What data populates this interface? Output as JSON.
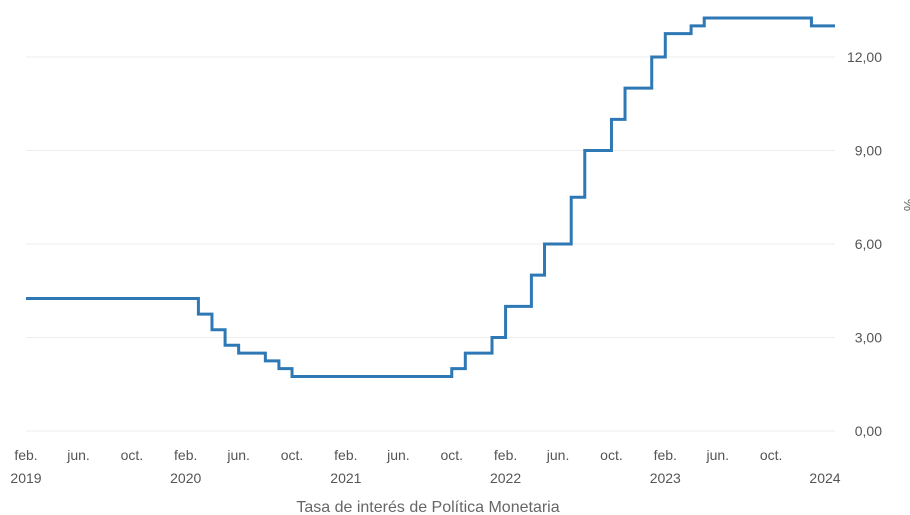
{
  "chart_data": {
    "type": "line",
    "step": true,
    "title": "Tasa de interés de Política Monetaria",
    "ylabel": "%",
    "ylim": [
      0,
      13.5
    ],
    "yticks": [
      "0,00",
      "3,00",
      "6,00",
      "9,00",
      "12,00"
    ],
    "ytick_values": [
      0,
      3,
      6,
      9,
      12
    ],
    "grid": true,
    "xticks": [
      {
        "date": "2019-02",
        "month": "feb.",
        "year": "2019"
      },
      {
        "date": "2019-06",
        "month": "jun.",
        "year": ""
      },
      {
        "date": "2019-10",
        "month": "oct.",
        "year": ""
      },
      {
        "date": "2020-02",
        "month": "feb.",
        "year": "2020"
      },
      {
        "date": "2020-06",
        "month": "jun.",
        "year": ""
      },
      {
        "date": "2020-10",
        "month": "oct.",
        "year": ""
      },
      {
        "date": "2021-02",
        "month": "feb.",
        "year": "2021"
      },
      {
        "date": "2021-06",
        "month": "jun.",
        "year": ""
      },
      {
        "date": "2021-10",
        "month": "oct.",
        "year": ""
      },
      {
        "date": "2022-02",
        "month": "feb.",
        "year": "2022"
      },
      {
        "date": "2022-06",
        "month": "jun.",
        "year": ""
      },
      {
        "date": "2022-10",
        "month": "oct.",
        "year": ""
      },
      {
        "date": "2023-02",
        "month": "feb.",
        "year": "2023"
      },
      {
        "date": "2023-06",
        "month": "jun.",
        "year": ""
      },
      {
        "date": "2023-10",
        "month": "oct.",
        "year": ""
      },
      {
        "date": "2024-02",
        "month": "",
        "year": "2024"
      }
    ],
    "series": [
      {
        "color": "#2e78b5",
        "points": [
          {
            "date": "2019-02-01",
            "value": 4.25
          },
          {
            "date": "2020-03-01",
            "value": 3.75
          },
          {
            "date": "2020-04-01",
            "value": 3.25
          },
          {
            "date": "2020-05-01",
            "value": 2.75
          },
          {
            "date": "2020-06-01",
            "value": 2.5
          },
          {
            "date": "2020-08-01",
            "value": 2.25
          },
          {
            "date": "2020-09-01",
            "value": 2.0
          },
          {
            "date": "2020-10-01",
            "value": 1.75
          },
          {
            "date": "2021-10-01",
            "value": 2.0
          },
          {
            "date": "2021-11-01",
            "value": 2.5
          },
          {
            "date": "2022-01-01",
            "value": 3.0
          },
          {
            "date": "2022-02-01",
            "value": 4.0
          },
          {
            "date": "2022-04-01",
            "value": 5.0
          },
          {
            "date": "2022-05-01",
            "value": 6.0
          },
          {
            "date": "2022-07-01",
            "value": 7.5
          },
          {
            "date": "2022-08-01",
            "value": 9.0
          },
          {
            "date": "2022-10-01",
            "value": 10.0
          },
          {
            "date": "2022-11-01",
            "value": 11.0
          },
          {
            "date": "2023-01-01",
            "value": 12.0
          },
          {
            "date": "2023-02-01",
            "value": 12.75
          },
          {
            "date": "2023-04-01",
            "value": 13.0
          },
          {
            "date": "2023-05-01",
            "value": 13.25
          },
          {
            "date": "2024-01-01",
            "value": 13.0
          },
          {
            "date": "2024-02-01",
            "value": 13.0
          }
        ]
      }
    ]
  }
}
